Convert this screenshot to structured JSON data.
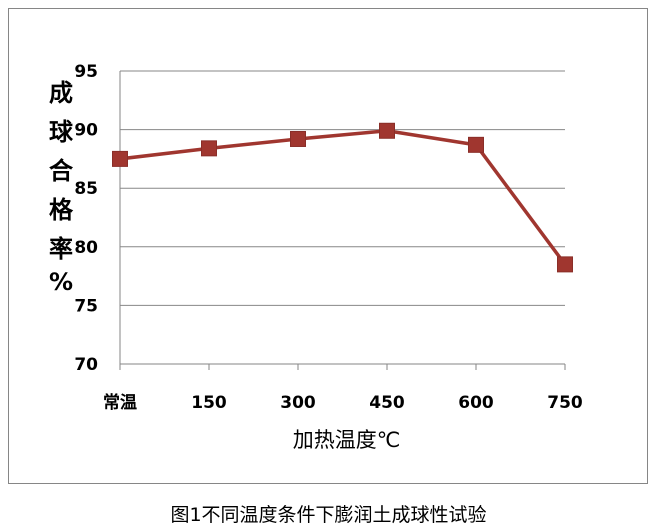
{
  "chart_data": {
    "type": "line",
    "categories": [
      "常温",
      "150",
      "300",
      "450",
      "600",
      "750"
    ],
    "series": [
      {
        "values": [
          87.5,
          88.4,
          89.2,
          89.9,
          88.7,
          78.5
        ],
        "color": "#A0362F",
        "marker": "square"
      }
    ],
    "xlabel": "加热温度℃",
    "ylabel": "成球合格率%",
    "ylabel_chars": [
      "成",
      "球",
      "合",
      "格",
      "率",
      "%"
    ],
    "ylim": [
      70,
      95
    ],
    "yticks": [
      70,
      75,
      80,
      85,
      90,
      95
    ],
    "grid": true,
    "legend": "none"
  },
  "caption": "图1不同温度条件下膨润土成球性试验"
}
